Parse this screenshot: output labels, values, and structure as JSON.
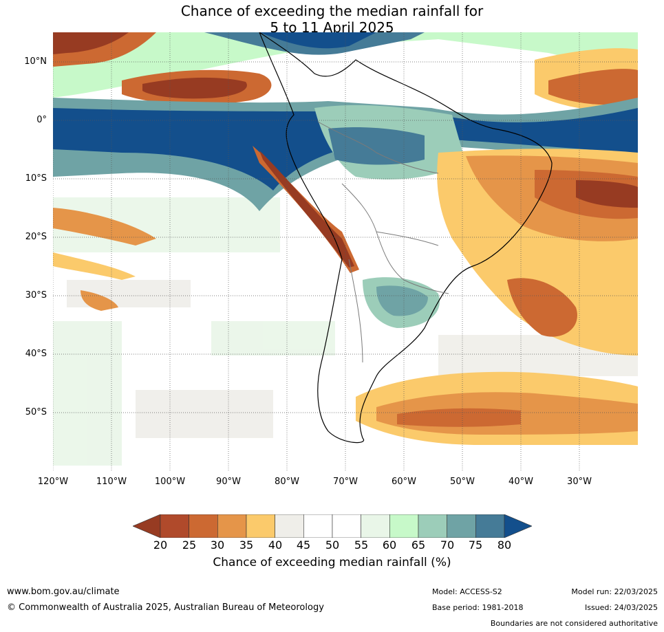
{
  "title": {
    "line1": "Chance of exceeding the median rainfall for",
    "line2": "5 to 11 April 2025"
  },
  "map": {
    "lat_labels": [
      "10°N",
      "0°",
      "10°S",
      "20°S",
      "30°S",
      "40°S",
      "50°S"
    ],
    "lon_labels": [
      "120°W",
      "110°W",
      "100°W",
      "90°W",
      "80°W",
      "70°W",
      "60°W",
      "50°W",
      "40°W",
      "30°W"
    ]
  },
  "legend": {
    "title": "Chance of exceeding median rainfall (%)",
    "ticks": [
      "20",
      "25",
      "30",
      "35",
      "40",
      "45",
      "50",
      "55",
      "60",
      "65",
      "70",
      "75",
      "80"
    ],
    "colors": [
      "#973b22",
      "#b04a2b",
      "#cc6932",
      "#e59549",
      "#fbca6b",
      "#efeee9",
      "#ffffff",
      "#ffffff",
      "#e9f6e8",
      "#c7f9c9",
      "#9ccdb9",
      "#6fa3a5",
      "#457b97",
      "#134f8c"
    ]
  },
  "footer": {
    "website": "www.bom.gov.au/climate",
    "copyright": "© Commonwealth of Australia 2025, Australian Bureau of Meteorology",
    "model": "Model: ACCESS-S2",
    "base_period": "Base period: 1981-2018",
    "model_run": "Model run: 22/03/2025",
    "issued": "Issued: 24/03/2025",
    "disclaimer": "Boundaries are not considered authoritative"
  }
}
